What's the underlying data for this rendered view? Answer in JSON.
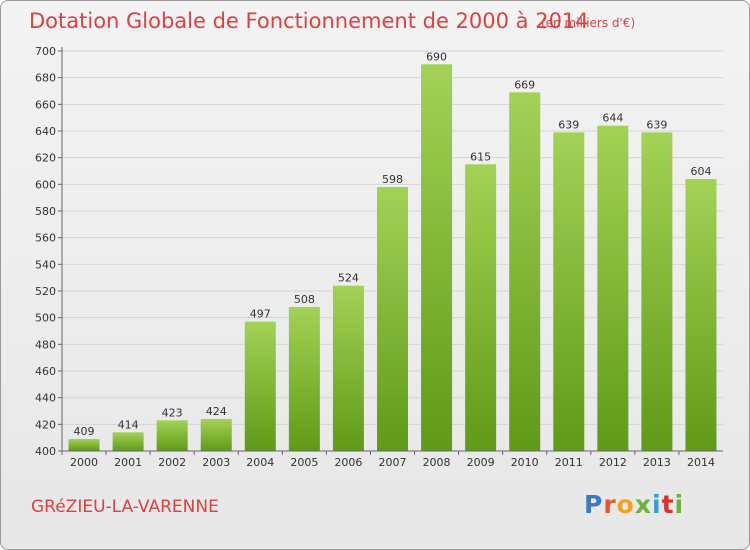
{
  "header": {
    "title": "Dotation Globale de Fonctionnement de 2000 à 2014",
    "unit": "(en milliers d'€)"
  },
  "footer": {
    "commune": "GRéZIEU-LA-VARENNE",
    "logo": "Proxiti"
  },
  "colors": {
    "bar_top": "#a3d255",
    "bar_bottom": "#5f9a18",
    "title": "#e04040"
  },
  "chart_data": {
    "type": "bar",
    "categories": [
      "2000",
      "2001",
      "2002",
      "2003",
      "2004",
      "2005",
      "2006",
      "2007",
      "2008",
      "2009",
      "2010",
      "2011",
      "2012",
      "2013",
      "2014"
    ],
    "values": [
      409,
      414,
      423,
      424,
      497,
      508,
      524,
      598,
      690,
      615,
      669,
      639,
      644,
      639,
      604
    ],
    "data_labels": [
      "409",
      "414",
      "423",
      "424",
      "497",
      "508",
      "524",
      "598",
      "690",
      "615",
      "669",
      "639",
      "644",
      "639",
      "604"
    ],
    "yticks": [
      "400",
      "420",
      "440",
      "460",
      "480",
      "500",
      "520",
      "540",
      "560",
      "580",
      "600",
      "620",
      "640",
      "660",
      "680",
      "700"
    ],
    "ylim": [
      400,
      700
    ],
    "grid": true,
    "title": "Dotation Globale de Fonctionnement de 2000 à 2014",
    "xlabel": "",
    "ylabel": ""
  }
}
